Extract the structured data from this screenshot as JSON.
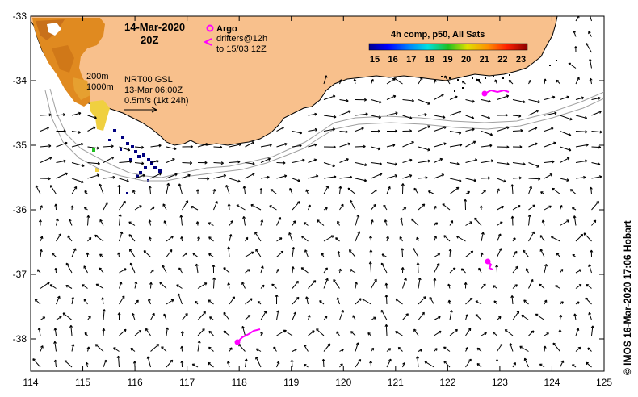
{
  "map": {
    "title_date": "14-Mar-2020",
    "title_time": "20Z",
    "legend": {
      "argo_label": "Argo",
      "drifters_line1": "drifters@12h",
      "drifters_line2": "to 15/03 12Z"
    },
    "sst_title": "4h comp, p50, All Sats",
    "sst_ticks": [
      "15",
      "16",
      "17",
      "18",
      "19",
      "20",
      "21",
      "22",
      "23"
    ],
    "contours": {
      "c200": "200m",
      "c1000": "1000m"
    },
    "annotation": {
      "line1": "NRT00 GSL",
      "line2": "13-Mar 06:00Z",
      "line3": "0.5m/s (1kt 24h)"
    },
    "x_ticks": [
      "114",
      "115",
      "116",
      "117",
      "118",
      "119",
      "120",
      "121",
      "122",
      "123",
      "124",
      "125"
    ],
    "y_ticks": [
      "-33",
      "-34",
      "-35",
      "-36",
      "-37",
      "-38"
    ],
    "credit": "© IMOS 16-Mar-2020 17:06 Hobart",
    "colors": {
      "land": "#f8c08c",
      "argo": "#ff00ff",
      "contour": "#a0a0a0"
    }
  }
}
